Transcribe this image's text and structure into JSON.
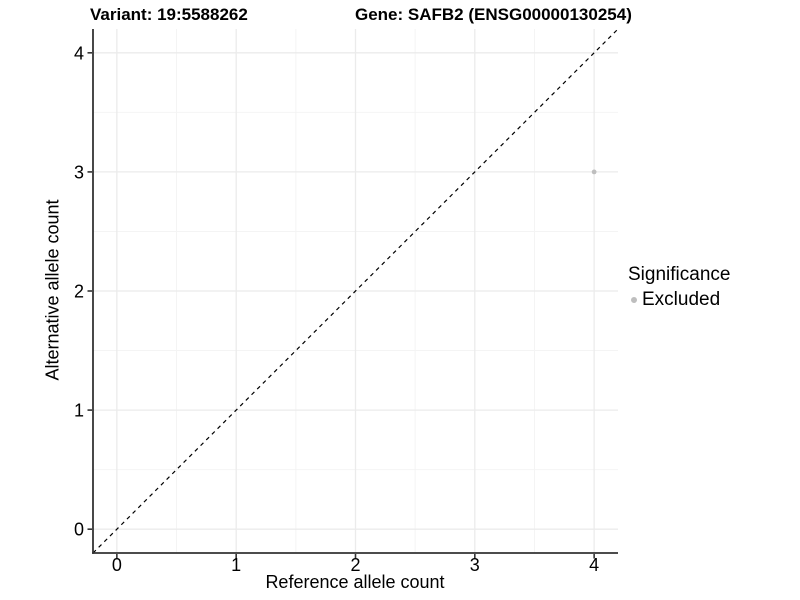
{
  "chart_data": {
    "type": "scatter",
    "title_left": "Variant: 19:5588262",
    "title_right": "Gene: SAFB2 (ENSG00000130254)",
    "xlabel": "Reference allele count",
    "ylabel": "Alternative allele count",
    "xlim": [
      -0.2,
      4.2
    ],
    "ylim": [
      -0.2,
      4.2
    ],
    "x_ticks": [
      0,
      1,
      2,
      3,
      4
    ],
    "y_ticks": [
      0,
      1,
      2,
      3,
      4
    ],
    "x_minor_ticks": [
      0.5,
      1.5,
      2.5,
      3.5
    ],
    "y_minor_ticks": [
      0.5,
      1.5,
      2.5,
      3.5
    ],
    "grid": true,
    "series": [
      {
        "name": "Excluded",
        "color": "#bebebe",
        "point_radius": 2.4,
        "points": [
          {
            "x": 4,
            "y": 3
          }
        ]
      }
    ],
    "identity_line": {
      "style": "dashed",
      "color": "#000000",
      "from": {
        "x": -0.2,
        "y": -0.2
      },
      "to": {
        "x": 4.2,
        "y": 4.2
      }
    },
    "legend": {
      "title": "Significance",
      "position": "right",
      "items": [
        {
          "label": "Excluded",
          "color": "#bebebe"
        }
      ]
    }
  },
  "colors": {
    "background": "#ffffff",
    "grid_major": "#ebebeb",
    "grid_minor": "#f4f4f4",
    "axis_line": "#333333",
    "tick_text": "#000000",
    "title_text": "#000000"
  }
}
